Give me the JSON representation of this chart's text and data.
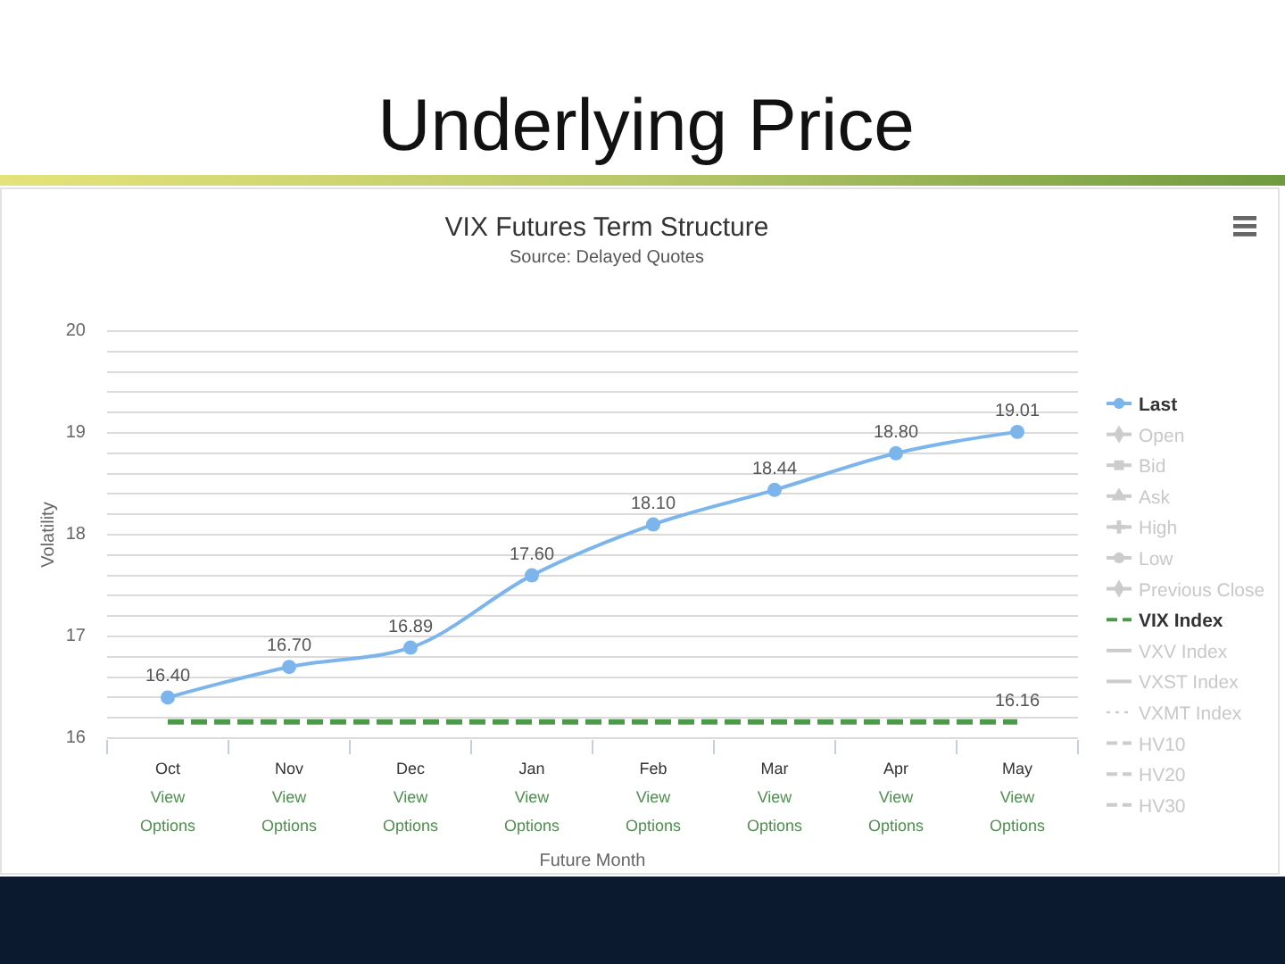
{
  "chart_data": {
    "type": "line",
    "title": "Underlying Price",
    "subtitle": "VIX Futures Term Structure",
    "annotations": [
      "Source: Delayed Quotes"
    ],
    "xlabel": "Future Month",
    "ylabel": "Volatility",
    "categories": [
      "Oct\nView\nOptions",
      "Nov\nView\nOptions",
      "Dec\nView\nOptions",
      "Jan\nView\nOptions",
      "Feb\nView\nOptions",
      "Mar\nView\nOptions",
      "Apr\nView\nOptions",
      "May\nView\nOptions"
    ],
    "ylim": [
      16,
      20
    ],
    "yticks": [
      16,
      {
        "value": 16.2,
        "label": null
      },
      {
        "value": 16.4,
        "label": null
      },
      {
        "value": 16.6,
        "label": null
      },
      {
        "value": 16.8,
        "label": null
      },
      17,
      {
        "value": 17.2,
        "label": null
      },
      {
        "value": 17.4,
        "label": null
      },
      {
        "value": 17.6,
        "label": null
      },
      {
        "value": 17.8,
        "label": null
      },
      18,
      {
        "value": 18.2,
        "label": null
      },
      {
        "value": 18.4,
        "label": null
      },
      {
        "value": 18.6,
        "label": null
      },
      {
        "value": 18.8,
        "label": null
      },
      19,
      {
        "value": 19.2,
        "label": null
      },
      {
        "value": 19.4,
        "label": null
      },
      {
        "value": 19.6,
        "label": null
      },
      {
        "value": 19.8,
        "label": null
      },
      20
    ],
    "grid": "y",
    "legend": "right",
    "series": [
      {
        "name": "Last",
        "color": "#7cb5ec",
        "marker": "circle",
        "line_style": "solid",
        "values": [
          16.4,
          16.7,
          16.89,
          17.6,
          18.1,
          18.44,
          18.8,
          19.01
        ],
        "value_labels": [
          "16.40",
          "16.70",
          "16.89",
          "17.60",
          "18.10",
          "18.44",
          "18.80",
          "19.01"
        ]
      },
      {
        "name": "Open",
        "color": "#cccccc",
        "marker": "diamond",
        "line_style": "solid",
        "values": [
          null,
          null,
          null,
          null,
          null,
          null,
          null,
          null
        ]
      },
      {
        "name": "Bid",
        "color": "#cccccc",
        "marker": "square",
        "line_style": "solid",
        "values": [
          null,
          null,
          null,
          null,
          null,
          null,
          null,
          null
        ]
      },
      {
        "name": "Ask",
        "color": "#cccccc",
        "marker": "triangle",
        "line_style": "solid",
        "values": [
          null,
          null,
          null,
          null,
          null,
          null,
          null,
          null
        ]
      },
      {
        "name": "High",
        "color": "#cccccc",
        "marker": "cross",
        "line_style": "solid",
        "values": [
          null,
          null,
          null,
          null,
          null,
          null,
          null,
          null
        ]
      },
      {
        "name": "Low",
        "color": "#cccccc",
        "marker": "circle",
        "line_style": "solid",
        "values": [
          null,
          null,
          null,
          null,
          null,
          null,
          null,
          null
        ]
      },
      {
        "name": "Previous Close",
        "color": "#cccccc",
        "marker": "diamond",
        "line_style": "solid",
        "values": [
          null,
          null,
          null,
          null,
          null,
          null,
          null,
          null
        ]
      },
      {
        "name": "VIX Index",
        "color": "#4a9a4a",
        "marker": "none",
        "line_style": "dashed",
        "values": [
          16.16,
          16.16,
          16.16,
          16.16,
          16.16,
          16.16,
          16.16,
          16.16
        ],
        "value_labels": [
          null,
          null,
          null,
          null,
          null,
          null,
          null,
          "16.16"
        ]
      },
      {
        "name": "VXV Index",
        "color": "#cccccc",
        "marker": "none",
        "line_style": "solid",
        "values": [
          null,
          null,
          null,
          null,
          null,
          null,
          null,
          null
        ]
      },
      {
        "name": "VXST Index",
        "color": "#cccccc",
        "marker": "none",
        "line_style": "solid",
        "values": [
          null,
          null,
          null,
          null,
          null,
          null,
          null,
          null
        ]
      },
      {
        "name": "VXMT Index",
        "color": "#cccccc",
        "marker": "none",
        "line_style": "dotted",
        "values": [
          null,
          null,
          null,
          null,
          null,
          null,
          null,
          null
        ]
      },
      {
        "name": "HV10",
        "color": "#cccccc",
        "marker": "none",
        "line_style": "dashed",
        "values": [
          null,
          null,
          null,
          null,
          null,
          null,
          null,
          null
        ]
      },
      {
        "name": "HV20",
        "color": "#cccccc",
        "marker": "none",
        "line_style": "dashed",
        "values": [
          null,
          null,
          null,
          null,
          null,
          null,
          null,
          null
        ]
      },
      {
        "name": "HV30",
        "color": "#cccccc",
        "marker": "none",
        "line_style": "dashed",
        "values": [
          null,
          null,
          null,
          null,
          null,
          null,
          null,
          null
        ]
      }
    ]
  }
}
